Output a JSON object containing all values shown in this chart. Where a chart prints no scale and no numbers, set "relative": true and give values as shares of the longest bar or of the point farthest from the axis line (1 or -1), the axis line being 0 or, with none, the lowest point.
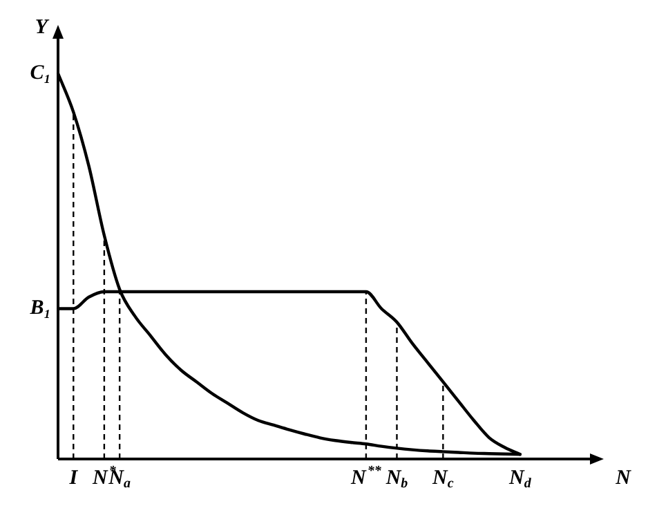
{
  "chart_data": {
    "type": "line",
    "xlabel": "N",
    "ylabel": "Y",
    "relative": true,
    "marker": "none",
    "line_style": "solid",
    "categories": [
      null,
      "I",
      null,
      "N$^{*}$",
      "N$_{a}$",
      null,
      null,
      null,
      null,
      null,
      null,
      null,
      null,
      null,
      null,
      null,
      null,
      null,
      null,
      null,
      "N$^{**}$",
      null,
      "N$_{b}$",
      null,
      null,
      "N$_{c}$",
      null,
      null,
      null,
      null,
      "N$_{d}$",
      null,
      null,
      null,
      null
    ],
    "series": [
      {
        "name": "C₁",
        "color": "#000000",
        "values": [
          1,
          0.9,
          0.76,
          0.58,
          0.44,
          0.37,
          0.32,
          0.27,
          0.23,
          0.2,
          0.17,
          0.145,
          0.12,
          0.1,
          0.088,
          0.076,
          0.065,
          0.055,
          0.048,
          0.043,
          0.039,
          0.033,
          0.028,
          0.024,
          0.021,
          0.019,
          0.017,
          0.015,
          0.014,
          0.013,
          0.012,
          null,
          null,
          null,
          null
        ]
      },
      {
        "name": "B₁",
        "color": "#000000",
        "values": [
          0.39,
          0.39,
          0.42,
          0.434,
          0.434,
          0.434,
          0.434,
          0.434,
          0.434,
          0.434,
          0.434,
          0.434,
          0.434,
          0.434,
          0.434,
          0.434,
          0.434,
          0.434,
          0.434,
          0.434,
          0.434,
          0.39,
          0.355,
          0.3,
          0.25,
          0.2,
          0.15,
          0.1,
          0.055,
          0.03,
          0.012,
          null,
          null,
          null,
          null
        ]
      }
    ],
    "ref_lines": [
      {
        "axis": "x",
        "value": "I",
        "line_style": "dashed"
      },
      {
        "axis": "x",
        "value": "N$^{*}$",
        "line_style": "dashed"
      },
      {
        "axis": "x",
        "value": "N$_{a}$",
        "line_style": "dashed"
      },
      {
        "axis": "x",
        "value": "N$^{**}$",
        "line_style": "dashed"
      },
      {
        "axis": "x",
        "value": "N$_{b}$",
        "line_style": "dashed"
      },
      {
        "axis": "x",
        "value": "N$_{c}$",
        "line_style": "dashed"
      }
    ]
  }
}
